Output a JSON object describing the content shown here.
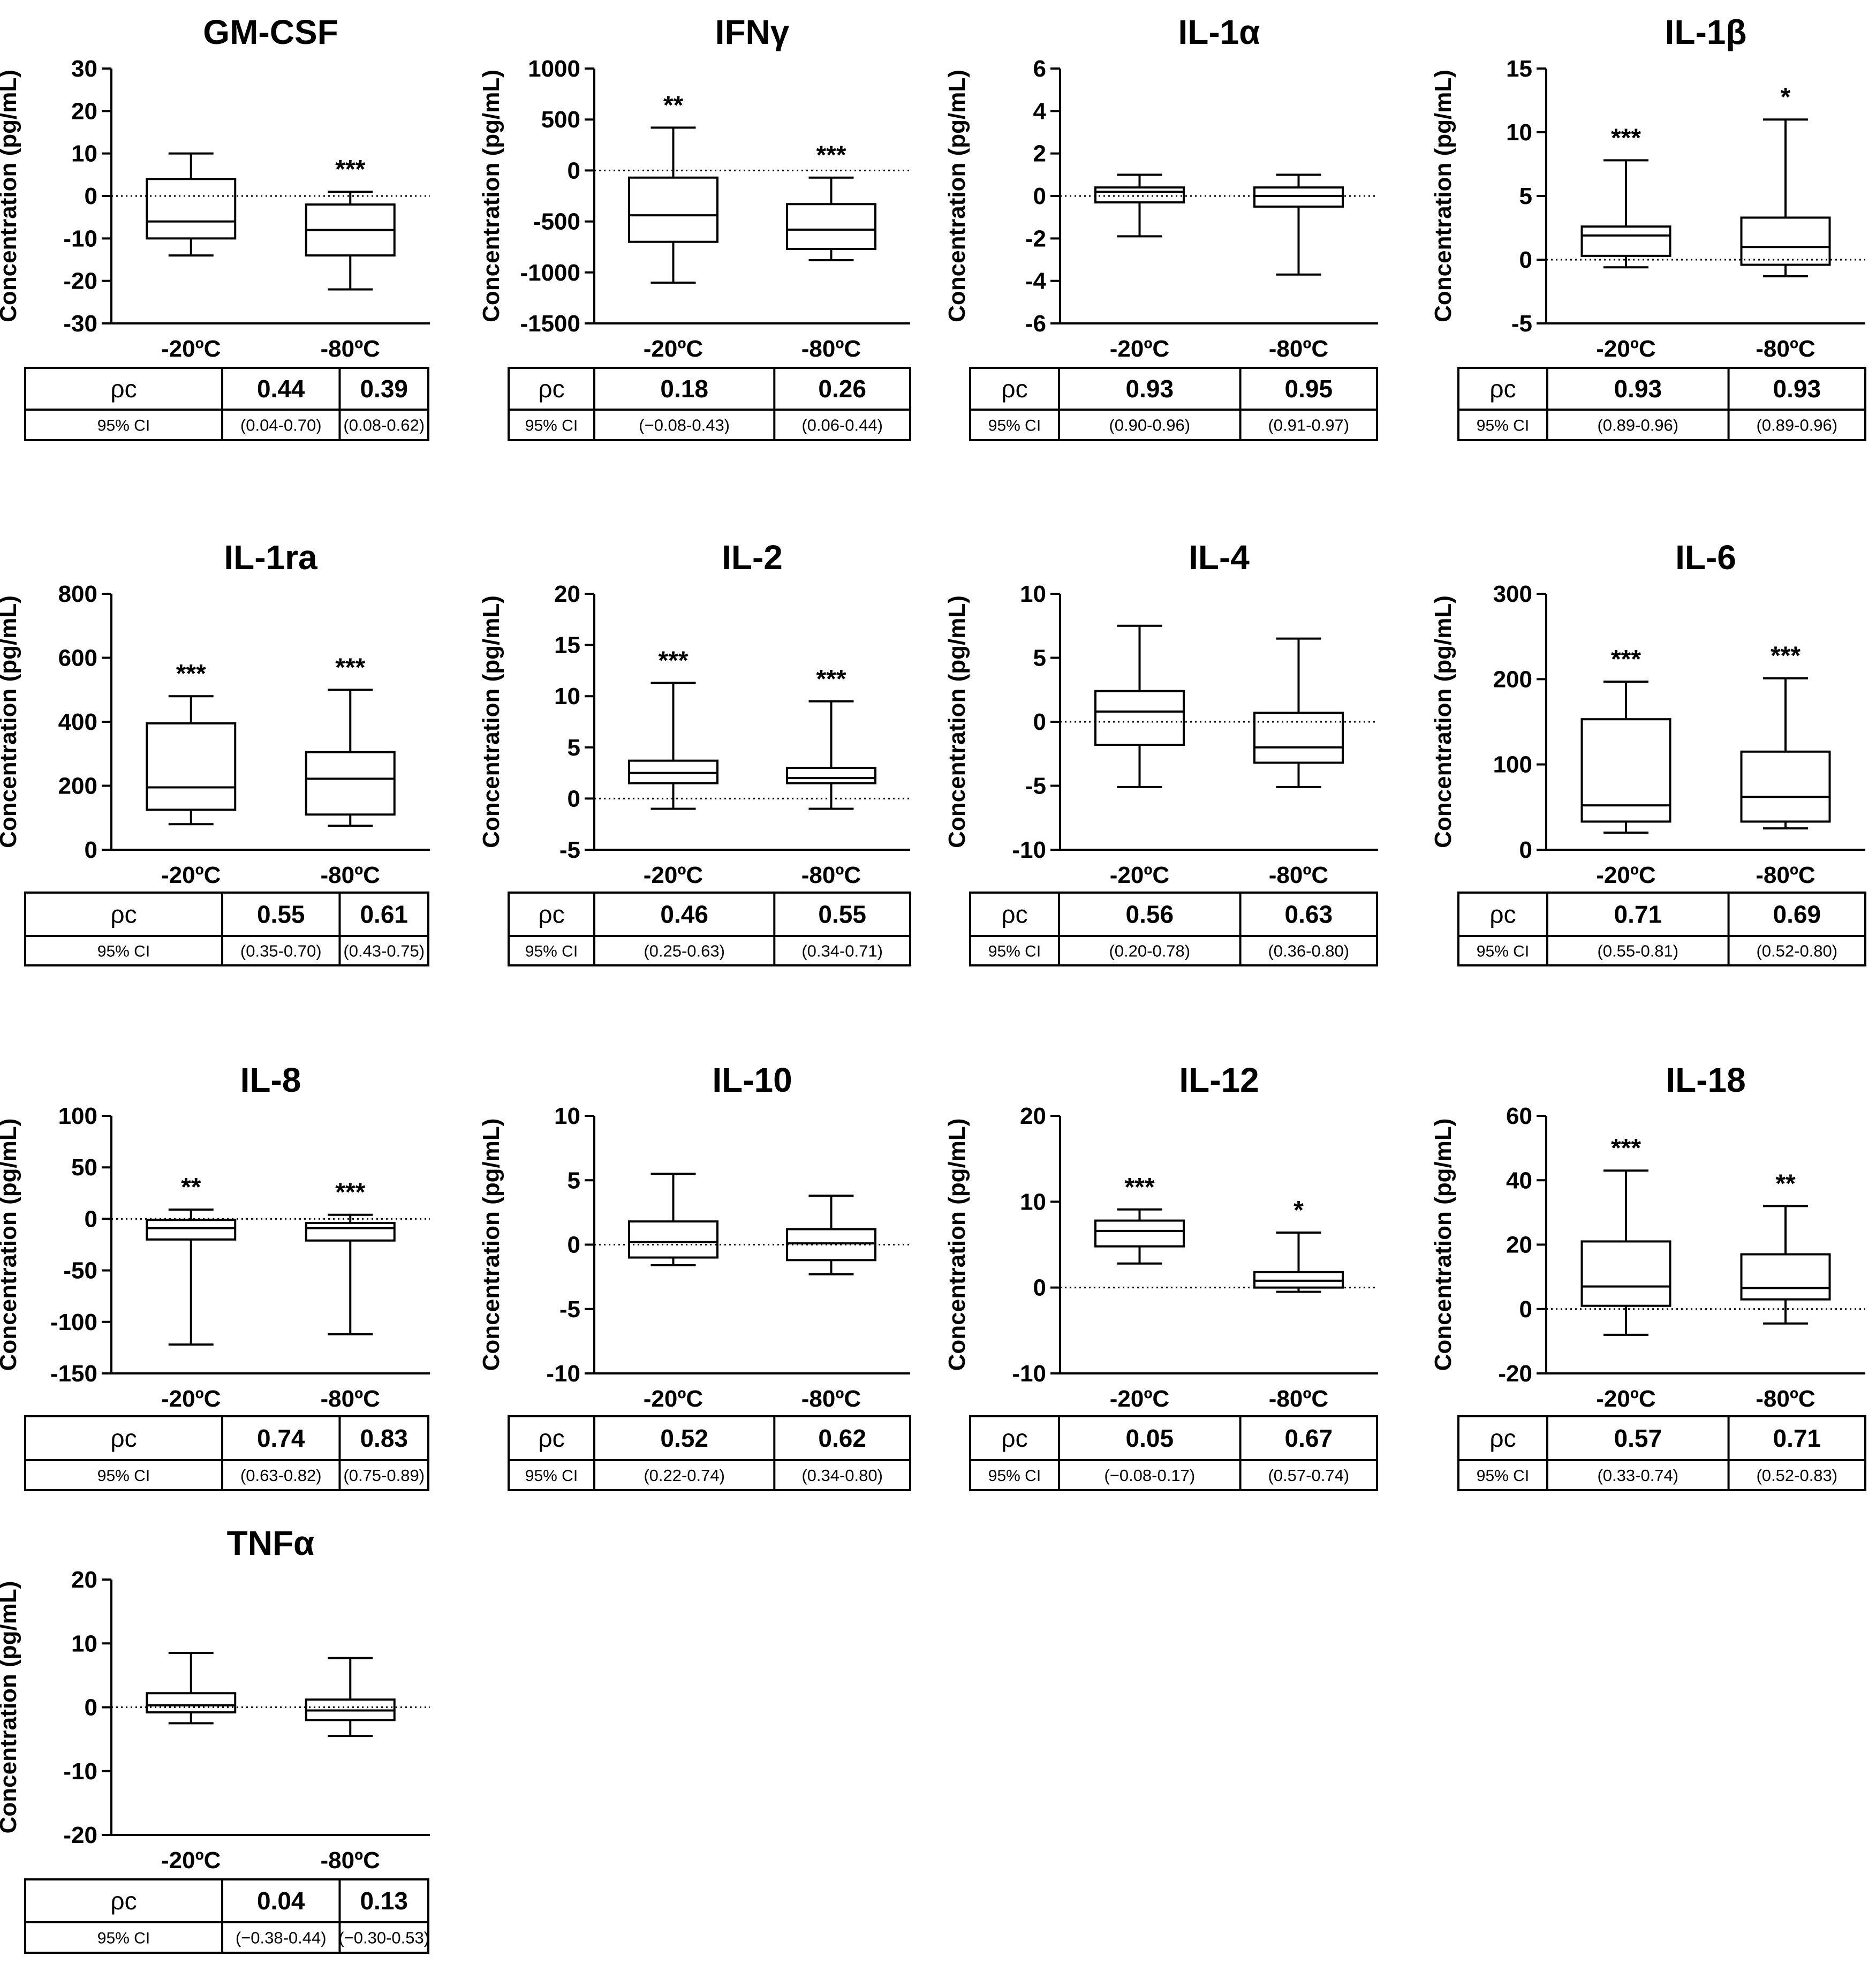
{
  "figure": {
    "ylabel": "Concentration (pg/mL)",
    "row_labels": {
      "rho": "ρc",
      "ci": "95% CI"
    }
  },
  "chart_data": [
    {
      "type": "box",
      "title": "GM-CSF",
      "ylim": [
        -30,
        30
      ],
      "yticks": [
        -30,
        -20,
        -10,
        0,
        10,
        20,
        30
      ],
      "categories": [
        "-20ºC",
        "-80ºC"
      ],
      "boxes": [
        {
          "min": -14,
          "q1": -10,
          "median": -6,
          "q3": 4,
          "max": 10,
          "sig": ""
        },
        {
          "min": -22,
          "q1": -14,
          "median": -8,
          "q3": -2,
          "max": 1,
          "sig": "***"
        }
      ],
      "rho": [
        "0.44",
        "0.39"
      ],
      "ci": [
        "(0.04-0.70)",
        "(0.08-0.62)"
      ]
    },
    {
      "type": "box",
      "title": "IFNγ",
      "ylim": [
        -1500,
        1000
      ],
      "yticks": [
        -1500,
        -1000,
        -500,
        0,
        500,
        1000
      ],
      "categories": [
        "-20ºC",
        "-80ºC"
      ],
      "boxes": [
        {
          "min": -1100,
          "q1": -700,
          "median": -440,
          "q3": -70,
          "max": 420,
          "sig": "**"
        },
        {
          "min": -880,
          "q1": -770,
          "median": -580,
          "q3": -330,
          "max": -70,
          "sig": "***"
        }
      ],
      "rho": [
        "0.18",
        "0.26"
      ],
      "ci": [
        "(−0.08-0.43)",
        "(0.06-0.44)"
      ]
    },
    {
      "type": "box",
      "title": "IL-1α",
      "ylim": [
        -6,
        6
      ],
      "yticks": [
        -6,
        -4,
        -2,
        0,
        2,
        4,
        6
      ],
      "categories": [
        "-20ºC",
        "-80ºC"
      ],
      "boxes": [
        {
          "min": -1.9,
          "q1": -0.3,
          "median": 0.2,
          "q3": 0.4,
          "max": 1.0,
          "sig": ""
        },
        {
          "min": -3.7,
          "q1": -0.5,
          "median": 0.0,
          "q3": 0.4,
          "max": 1.0,
          "sig": ""
        }
      ],
      "rho": [
        "0.93",
        "0.95"
      ],
      "ci": [
        "(0.90-0.96)",
        "(0.91-0.97)"
      ]
    },
    {
      "type": "box",
      "title": "IL-1β",
      "ylim": [
        -5,
        15
      ],
      "yticks": [
        -5,
        0,
        5,
        10,
        15
      ],
      "categories": [
        "-20ºC",
        "-80ºC"
      ],
      "boxes": [
        {
          "min": -0.6,
          "q1": 0.3,
          "median": 1.9,
          "q3": 2.6,
          "max": 7.8,
          "sig": "***"
        },
        {
          "min": -1.3,
          "q1": -0.4,
          "median": 1.0,
          "q3": 3.3,
          "max": 11.0,
          "sig": "*"
        }
      ],
      "rho": [
        "0.93",
        "0.93"
      ],
      "ci": [
        "(0.89-0.96)",
        "(0.89-0.96)"
      ]
    },
    {
      "type": "box",
      "title": "IL-1ra",
      "ylim": [
        0,
        800
      ],
      "yticks": [
        0,
        200,
        400,
        600,
        800
      ],
      "categories": [
        "-20ºC",
        "-80ºC"
      ],
      "boxes": [
        {
          "min": 80,
          "q1": 125,
          "median": 195,
          "q3": 395,
          "max": 480,
          "sig": "***"
        },
        {
          "min": 75,
          "q1": 110,
          "median": 222,
          "q3": 305,
          "max": 500,
          "sig": "***"
        }
      ],
      "rho": [
        "0.55",
        "0.61"
      ],
      "ci": [
        "(0.35-0.70)",
        "(0.43-0.75)"
      ]
    },
    {
      "type": "box",
      "title": "IL-2",
      "ylim": [
        -5,
        20
      ],
      "yticks": [
        -5,
        0,
        5,
        10,
        15,
        20
      ],
      "categories": [
        "-20ºC",
        "-80ºC"
      ],
      "boxes": [
        {
          "min": -1.0,
          "q1": 1.5,
          "median": 2.5,
          "q3": 3.7,
          "max": 11.3,
          "sig": "***"
        },
        {
          "min": -1.0,
          "q1": 1.5,
          "median": 2.0,
          "q3": 3.0,
          "max": 9.5,
          "sig": "***"
        }
      ],
      "rho": [
        "0.46",
        "0.55"
      ],
      "ci": [
        "(0.25-0.63)",
        "(0.34-0.71)"
      ]
    },
    {
      "type": "box",
      "title": "IL-4",
      "ylim": [
        -10,
        10
      ],
      "yticks": [
        -10,
        -5,
        0,
        5,
        10
      ],
      "categories": [
        "-20ºC",
        "-80ºC"
      ],
      "boxes": [
        {
          "min": -5.1,
          "q1": -1.8,
          "median": 0.8,
          "q3": 2.4,
          "max": 7.5,
          "sig": ""
        },
        {
          "min": -5.1,
          "q1": -3.2,
          "median": -2.0,
          "q3": 0.7,
          "max": 6.5,
          "sig": ""
        }
      ],
      "rho": [
        "0.56",
        "0.63"
      ],
      "ci": [
        "(0.20-0.78)",
        "(0.36-0.80)"
      ]
    },
    {
      "type": "box",
      "title": "IL-6",
      "ylim": [
        0,
        300
      ],
      "yticks": [
        0,
        100,
        200,
        300
      ],
      "categories": [
        "-20ºC",
        "-80ºC"
      ],
      "boxes": [
        {
          "min": 20,
          "q1": 33,
          "median": 52,
          "q3": 153,
          "max": 197,
          "sig": "***"
        },
        {
          "min": 25,
          "q1": 33,
          "median": 62,
          "q3": 115,
          "max": 201,
          "sig": "***"
        }
      ],
      "rho": [
        "0.71",
        "0.69"
      ],
      "ci": [
        "(0.55-0.81)",
        "(0.52-0.80)"
      ]
    },
    {
      "type": "box",
      "title": "IL-8",
      "ylim": [
        -150,
        100
      ],
      "yticks": [
        -150,
        -100,
        -50,
        0,
        50,
        100
      ],
      "categories": [
        "-20ºC",
        "-80ºC"
      ],
      "boxes": [
        {
          "min": -122,
          "q1": -20,
          "median": -9,
          "q3": -1,
          "max": 9,
          "sig": "**"
        },
        {
          "min": -112,
          "q1": -21,
          "median": -9,
          "q3": -4,
          "max": 4,
          "sig": "***"
        }
      ],
      "rho": [
        "0.74",
        "0.83"
      ],
      "ci": [
        "(0.63-0.82)",
        "(0.75-0.89)"
      ]
    },
    {
      "type": "box",
      "title": "IL-10",
      "ylim": [
        -10,
        10
      ],
      "yticks": [
        -10,
        -5,
        0,
        5,
        10
      ],
      "categories": [
        "-20ºC",
        "-80ºC"
      ],
      "boxes": [
        {
          "min": -1.6,
          "q1": -1.0,
          "median": 0.2,
          "q3": 1.8,
          "max": 5.5,
          "sig": ""
        },
        {
          "min": -2.3,
          "q1": -1.2,
          "median": 0.1,
          "q3": 1.2,
          "max": 3.8,
          "sig": ""
        }
      ],
      "rho": [
        "0.52",
        "0.62"
      ],
      "ci": [
        "(0.22-0.74)",
        "(0.34-0.80)"
      ]
    },
    {
      "type": "box",
      "title": "IL-12",
      "ylim": [
        -10,
        20
      ],
      "yticks": [
        -10,
        0,
        10,
        20
      ],
      "categories": [
        "-20ºC",
        "-80ºC"
      ],
      "boxes": [
        {
          "min": 2.8,
          "q1": 4.8,
          "median": 6.6,
          "q3": 7.8,
          "max": 9.1,
          "sig": "***"
        },
        {
          "min": -0.5,
          "q1": 0.0,
          "median": 0.8,
          "q3": 1.8,
          "max": 6.4,
          "sig": "*"
        }
      ],
      "rho": [
        "0.05",
        "0.67"
      ],
      "ci": [
        "(−0.08-0.17)",
        "(0.57-0.74)"
      ]
    },
    {
      "type": "box",
      "title": "IL-18",
      "ylim": [
        -20,
        60
      ],
      "yticks": [
        -20,
        0,
        20,
        40,
        60
      ],
      "categories": [
        "-20ºC",
        "-80ºC"
      ],
      "boxes": [
        {
          "min": -8,
          "q1": 1,
          "median": 7,
          "q3": 21,
          "max": 43,
          "sig": "***"
        },
        {
          "min": -4.5,
          "q1": 3,
          "median": 6.5,
          "q3": 17,
          "max": 32,
          "sig": "**"
        }
      ],
      "rho": [
        "0.57",
        "0.71"
      ],
      "ci": [
        "(0.33-0.74)",
        "(0.52-0.83)"
      ]
    },
    {
      "type": "box",
      "title": "TNFα",
      "ylim": [
        -20,
        20
      ],
      "yticks": [
        -20,
        -10,
        0,
        10,
        20
      ],
      "categories": [
        "-20ºC",
        "-80ºC"
      ],
      "boxes": [
        {
          "min": -2.5,
          "q1": -0.8,
          "median": 0.3,
          "q3": 2.2,
          "max": 8.5,
          "sig": ""
        },
        {
          "min": -4.5,
          "q1": -2.0,
          "median": -0.5,
          "q3": 1.2,
          "max": 7.7,
          "sig": ""
        }
      ],
      "rho": [
        "0.04",
        "0.13"
      ],
      "ci": [
        "(−0.38-0.44)",
        "(−0.30-0.53)"
      ]
    }
  ]
}
